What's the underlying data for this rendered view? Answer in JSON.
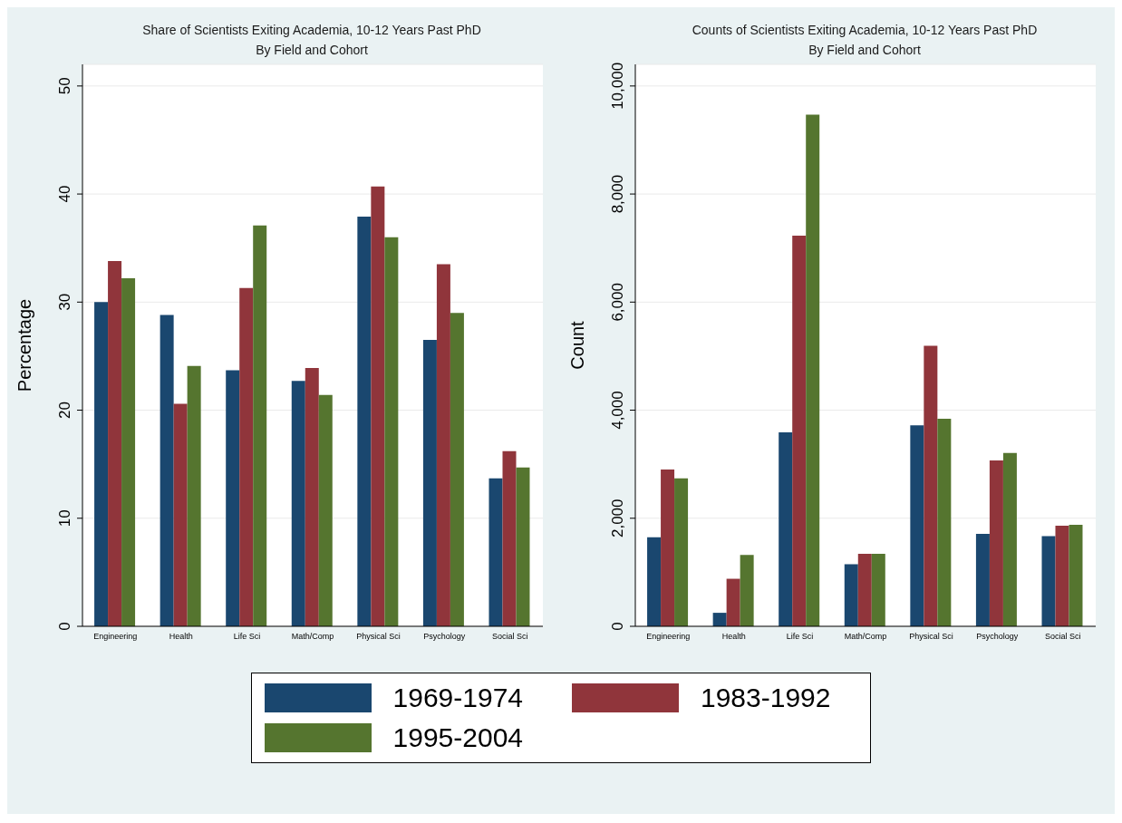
{
  "chart_data": [
    {
      "type": "bar",
      "title": "Share of Scientists Exiting Academia, 10-12 Years Past PhD",
      "subtitle": "By Field and Cohort",
      "ylabel": "Percentage",
      "categories": [
        "Engineering",
        "Health",
        "Life Sci",
        "Math/Comp",
        "Physical Sci",
        "Psychology",
        "Social Sci"
      ],
      "series": [
        {
          "name": "1969-1974",
          "color": "#1a476f",
          "values": [
            30.0,
            28.8,
            23.7,
            22.7,
            37.9,
            26.5,
            13.7
          ]
        },
        {
          "name": "1983-1992",
          "color": "#90353b",
          "values": [
            33.8,
            20.6,
            31.3,
            23.9,
            40.7,
            33.5,
            16.2
          ]
        },
        {
          "name": "1995-2004",
          "color": "#55752f",
          "values": [
            32.2,
            24.1,
            37.1,
            21.4,
            36.0,
            29.0,
            14.7
          ]
        }
      ],
      "ylim": [
        0,
        52
      ],
      "yticks": [
        0,
        10,
        20,
        30,
        40,
        50
      ],
      "grid": "y",
      "legend": "bottom"
    },
    {
      "type": "bar",
      "title": "Counts of Scientists Exiting Academia, 10-12 Years Past PhD",
      "subtitle": "By Field and Cohort",
      "ylabel": "Count",
      "categories": [
        "Engineering",
        "Health",
        "Life Sci",
        "Math/Comp",
        "Physical Sci",
        "Psychology",
        "Social Sci"
      ],
      "series": [
        {
          "name": "1969-1974",
          "color": "#1a476f",
          "values": [
            1650,
            250,
            3590,
            1150,
            3720,
            1710,
            1670
          ]
        },
        {
          "name": "1983-1992",
          "color": "#90353b",
          "values": [
            2900,
            880,
            7230,
            1340,
            5190,
            3070,
            1860
          ]
        },
        {
          "name": "1995-2004",
          "color": "#55752f",
          "values": [
            2740,
            1320,
            9470,
            1340,
            3840,
            3210,
            1880
          ]
        }
      ],
      "ylim": [
        0,
        10400
      ],
      "yticks": [
        0,
        {
          "value": 2000,
          "label": "2,000"
        },
        {
          "value": 4000,
          "label": "4,000"
        },
        {
          "value": 6000,
          "label": "6,000"
        },
        {
          "value": 8000,
          "label": "8,000"
        },
        {
          "value": 10000,
          "label": "10,000"
        }
      ],
      "grid": "y",
      "legend": "bottom"
    }
  ]
}
